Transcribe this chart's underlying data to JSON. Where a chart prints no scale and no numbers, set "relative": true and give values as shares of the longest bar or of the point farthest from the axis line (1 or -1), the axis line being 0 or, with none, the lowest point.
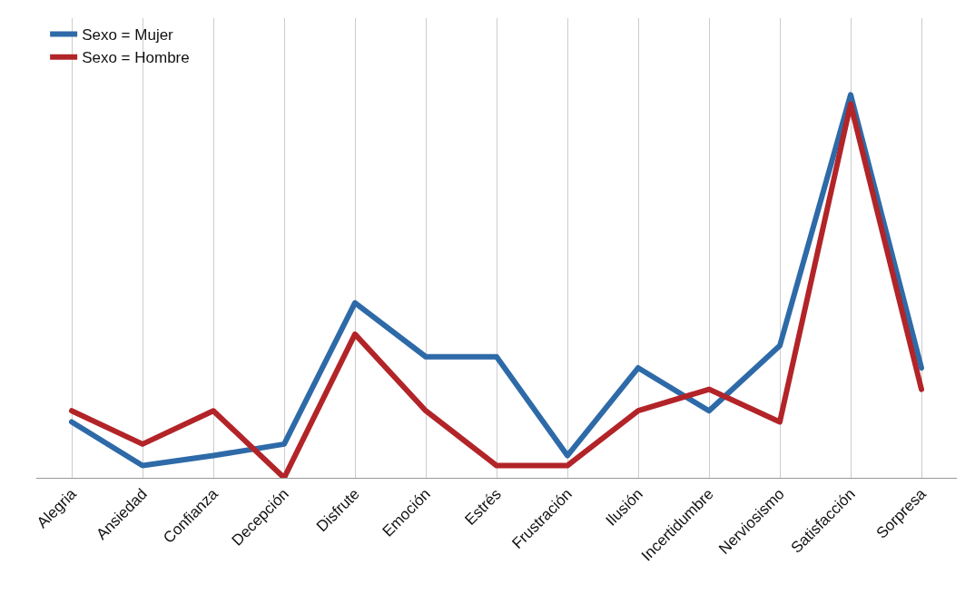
{
  "chart_data": {
    "type": "line",
    "relative": true,
    "grid": "x",
    "legend": "top left",
    "line_style": "solid",
    "marker": "none",
    "categories": [
      "Alegria",
      "Ansiedad",
      "Confianza",
      "Decepción",
      "Disfrute",
      "Emoción",
      "Estrés",
      "Frustración",
      "Ilusión",
      "Incertidumbre",
      "Nerviosismo",
      "Satisfacción",
      "Sorpresa"
    ],
    "series": [
      {
        "name": "Sexo = Mujer",
        "color": "#2e6aa8",
        "values": [
          0.146,
          0.032,
          0.058,
          0.088,
          0.457,
          0.316,
          0.316,
          0.058,
          0.287,
          0.175,
          0.345,
          1,
          0.287
        ]
      },
      {
        "name": "Sexo = Hombre",
        "color": "#b22428",
        "values": [
          0.175,
          0.088,
          0.175,
          0,
          0.375,
          0.175,
          0.032,
          0.032,
          0.175,
          0.231,
          0.146,
          0.976,
          0.231
        ]
      }
    ]
  }
}
